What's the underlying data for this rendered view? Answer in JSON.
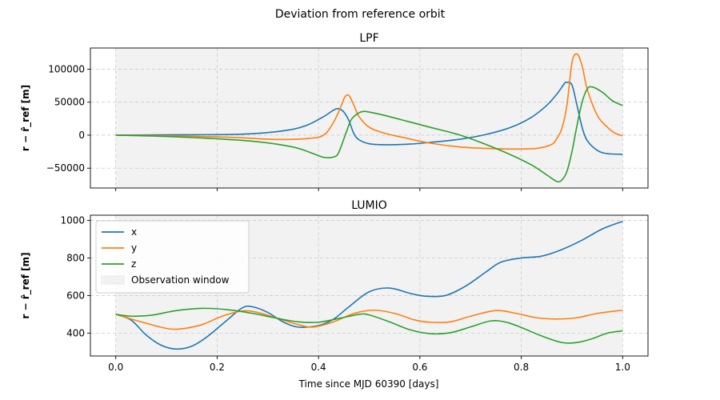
{
  "figure": {
    "title": "Deviation from reference orbit",
    "xlabel": "Time since MJD 60390 [days]"
  },
  "colors": {
    "x": "#1f77b4",
    "y": "#ff7f0e",
    "z": "#2ca02c",
    "observation_window": "#f2f2f2",
    "grid": "#cccccc"
  },
  "chart_data": [
    {
      "type": "line",
      "title": "LPF",
      "ylabel": "r − r̂_ref [m]",
      "xlim": [
        -0.05,
        1.05
      ],
      "ylim": [
        -80000,
        132000
      ],
      "xticks": [
        0.0,
        0.2,
        0.4,
        0.6,
        0.8,
        1.0
      ],
      "yticks": [
        -50000,
        0,
        50000,
        100000
      ],
      "ytick_labels": [
        "−50000",
        "0",
        "50000",
        "100000"
      ],
      "observation_window": [
        0.0,
        1.0
      ],
      "grid": true,
      "series": [
        {
          "key": "x",
          "points": [
            [
              0,
              0
            ],
            [
              0.1,
              500
            ],
            [
              0.2,
              800
            ],
            [
              0.25,
              1500
            ],
            [
              0.3,
              4000
            ],
            [
              0.35,
              9000
            ],
            [
              0.38,
              16000
            ],
            [
              0.41,
              28000
            ],
            [
              0.43,
              38000
            ],
            [
              0.44,
              40000
            ],
            [
              0.45,
              35000
            ],
            [
              0.46,
              22000
            ],
            [
              0.47,
              2000
            ],
            [
              0.48,
              -7000
            ],
            [
              0.5,
              -13000
            ],
            [
              0.53,
              -14500
            ],
            [
              0.58,
              -13500
            ],
            [
              0.62,
              -11000
            ],
            [
              0.68,
              -6000
            ],
            [
              0.73,
              1000
            ],
            [
              0.78,
              12000
            ],
            [
              0.82,
              27000
            ],
            [
              0.85,
              45000
            ],
            [
              0.87,
              62000
            ],
            [
              0.885,
              78000
            ],
            [
              0.89,
              80000
            ],
            [
              0.9,
              76000
            ],
            [
              0.91,
              45000
            ],
            [
              0.92,
              12000
            ],
            [
              0.93,
              -8000
            ],
            [
              0.95,
              -23000
            ],
            [
              0.97,
              -28000
            ],
            [
              1.0,
              -29000
            ]
          ]
        },
        {
          "key": "y",
          "points": [
            [
              0,
              0
            ],
            [
              0.1,
              -1000
            ],
            [
              0.2,
              -2500
            ],
            [
              0.25,
              -4000
            ],
            [
              0.3,
              -6000
            ],
            [
              0.34,
              -6500
            ],
            [
              0.38,
              -5000
            ],
            [
              0.41,
              0
            ],
            [
              0.43,
              20000
            ],
            [
              0.445,
              45000
            ],
            [
              0.452,
              58000
            ],
            [
              0.46,
              60000
            ],
            [
              0.47,
              45000
            ],
            [
              0.48,
              28000
            ],
            [
              0.5,
              12000
            ],
            [
              0.53,
              3000
            ],
            [
              0.57,
              -4000
            ],
            [
              0.62,
              -12000
            ],
            [
              0.68,
              -18000
            ],
            [
              0.73,
              -20000
            ],
            [
              0.78,
              -21000
            ],
            [
              0.83,
              -20000
            ],
            [
              0.86,
              -14000
            ],
            [
              0.87,
              -5000
            ],
            [
              0.88,
              10000
            ],
            [
              0.89,
              45000
            ],
            [
              0.9,
              110000
            ],
            [
              0.91,
              123000
            ],
            [
              0.92,
              105000
            ],
            [
              0.93,
              70000
            ],
            [
              0.95,
              30000
            ],
            [
              0.97,
              12000
            ],
            [
              0.985,
              3000
            ],
            [
              1.0,
              -1000
            ]
          ]
        },
        {
          "key": "z",
          "points": [
            [
              0,
              0
            ],
            [
              0.1,
              -2000
            ],
            [
              0.2,
              -5500
            ],
            [
              0.28,
              -10000
            ],
            [
              0.35,
              -18000
            ],
            [
              0.39,
              -28000
            ],
            [
              0.41,
              -33500
            ],
            [
              0.43,
              -33000
            ],
            [
              0.44,
              -26000
            ],
            [
              0.455,
              5000
            ],
            [
              0.465,
              24000
            ],
            [
              0.48,
              34000
            ],
            [
              0.49,
              36000
            ],
            [
              0.5,
              35000
            ],
            [
              0.53,
              30000
            ],
            [
              0.58,
              20000
            ],
            [
              0.62,
              12000
            ],
            [
              0.68,
              0
            ],
            [
              0.73,
              -14000
            ],
            [
              0.78,
              -30000
            ],
            [
              0.82,
              -45000
            ],
            [
              0.85,
              -60000
            ],
            [
              0.87,
              -70000
            ],
            [
              0.88,
              -68000
            ],
            [
              0.89,
              -55000
            ],
            [
              0.9,
              -25000
            ],
            [
              0.91,
              15000
            ],
            [
              0.92,
              50000
            ],
            [
              0.93,
              70000
            ],
            [
              0.94,
              73000
            ],
            [
              0.96,
              65000
            ],
            [
              0.98,
              52000
            ],
            [
              1.0,
              45000
            ]
          ]
        }
      ]
    },
    {
      "type": "line",
      "title": "LUMIO",
      "ylabel": "r − r̂_ref [m]",
      "xlim": [
        -0.05,
        1.05
      ],
      "ylim": [
        278,
        1028
      ],
      "xticks": [
        0.0,
        0.2,
        0.4,
        0.6,
        0.8,
        1.0
      ],
      "xtick_labels": [
        "0.0",
        "0.2",
        "0.4",
        "0.6",
        "0.8",
        "1.0"
      ],
      "yticks": [
        400,
        600,
        800,
        1000
      ],
      "ytick_labels": [
        "400",
        "600",
        "800",
        "1000"
      ],
      "observation_window": [
        0.0,
        1.0
      ],
      "grid": true,
      "legend": {
        "placement": "upper-left",
        "entries": [
          {
            "key": "x",
            "label": "x"
          },
          {
            "key": "y",
            "label": "y"
          },
          {
            "key": "z",
            "label": "z"
          },
          {
            "key": "window",
            "label": "Observation window"
          }
        ]
      },
      "series": [
        {
          "key": "x",
          "points": [
            [
              0,
              500
            ],
            [
              0.03,
              470
            ],
            [
              0.06,
              390
            ],
            [
              0.09,
              335
            ],
            [
              0.12,
              315
            ],
            [
              0.15,
              330
            ],
            [
              0.18,
              380
            ],
            [
              0.22,
              470
            ],
            [
              0.25,
              535
            ],
            [
              0.27,
              540
            ],
            [
              0.3,
              510
            ],
            [
              0.33,
              460
            ],
            [
              0.36,
              432
            ],
            [
              0.4,
              440
            ],
            [
              0.43,
              475
            ],
            [
              0.46,
              540
            ],
            [
              0.5,
              620
            ],
            [
              0.54,
              640
            ],
            [
              0.58,
              612
            ],
            [
              0.61,
              597
            ],
            [
              0.65,
              600
            ],
            [
              0.69,
              650
            ],
            [
              0.73,
              725
            ],
            [
              0.76,
              778
            ],
            [
              0.8,
              800
            ],
            [
              0.84,
              810
            ],
            [
              0.88,
              845
            ],
            [
              0.92,
              895
            ],
            [
              0.96,
              955
            ],
            [
              1.0,
              995
            ]
          ]
        },
        {
          "key": "y",
          "points": [
            [
              0,
              500
            ],
            [
              0.05,
              460
            ],
            [
              0.1,
              425
            ],
            [
              0.13,
              423
            ],
            [
              0.17,
              445
            ],
            [
              0.21,
              490
            ],
            [
              0.25,
              518
            ],
            [
              0.28,
              510
            ],
            [
              0.32,
              478
            ],
            [
              0.36,
              445
            ],
            [
              0.39,
              432
            ],
            [
              0.43,
              460
            ],
            [
              0.47,
              505
            ],
            [
              0.51,
              522
            ],
            [
              0.55,
              505
            ],
            [
              0.59,
              470
            ],
            [
              0.62,
              458
            ],
            [
              0.66,
              460
            ],
            [
              0.7,
              490
            ],
            [
              0.75,
              520
            ],
            [
              0.79,
              505
            ],
            [
              0.83,
              482
            ],
            [
              0.87,
              475
            ],
            [
              0.91,
              482
            ],
            [
              0.95,
              505
            ],
            [
              1.0,
              522
            ]
          ]
        },
        {
          "key": "z",
          "points": [
            [
              0,
              500
            ],
            [
              0.03,
              490
            ],
            [
              0.07,
              495
            ],
            [
              0.12,
              520
            ],
            [
              0.17,
              532
            ],
            [
              0.22,
              525
            ],
            [
              0.27,
              505
            ],
            [
              0.32,
              478
            ],
            [
              0.36,
              460
            ],
            [
              0.4,
              458
            ],
            [
              0.44,
              478
            ],
            [
              0.48,
              500
            ],
            [
              0.5,
              497
            ],
            [
              0.54,
              460
            ],
            [
              0.58,
              418
            ],
            [
              0.62,
              397
            ],
            [
              0.66,
              402
            ],
            [
              0.7,
              433
            ],
            [
              0.74,
              465
            ],
            [
              0.77,
              458
            ],
            [
              0.8,
              430
            ],
            [
              0.84,
              385
            ],
            [
              0.88,
              350
            ],
            [
              0.91,
              350
            ],
            [
              0.94,
              370
            ],
            [
              0.97,
              400
            ],
            [
              1.0,
              412
            ]
          ]
        }
      ]
    }
  ]
}
